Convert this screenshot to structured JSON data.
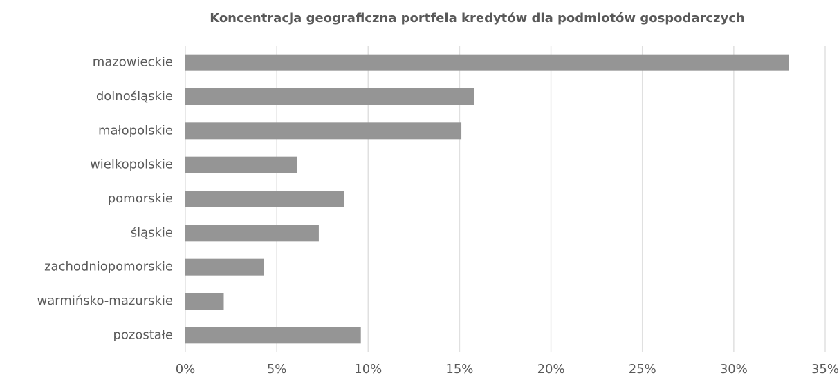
{
  "chart_data": {
    "type": "bar",
    "orientation": "horizontal",
    "title": "Koncentracja geograficzna portfela kredytów dla podmiotów gospodarczych",
    "categories": [
      "mazowieckie",
      "dolnośląskie",
      "małopolskie",
      "wielkopolskie",
      "pomorskie",
      "śląskie",
      "zachodniopomorskie",
      "warmińsko-mazurskie",
      "pozostałe"
    ],
    "values": [
      33,
      15.8,
      15.1,
      6.1,
      8.7,
      7.3,
      4.3,
      2.1,
      9.6
    ],
    "color": "#959595",
    "xlim": [
      0,
      35
    ],
    "xticks": [
      {
        "value": 0,
        "label": "0%"
      },
      {
        "value": 5,
        "label": "5%"
      },
      {
        "value": 10,
        "label": "10%"
      },
      {
        "value": 15,
        "label": "15%"
      },
      {
        "value": 20,
        "label": "20%"
      },
      {
        "value": 25,
        "label": "25%"
      },
      {
        "value": 30,
        "label": "30%"
      },
      {
        "value": 35,
        "label": "35%"
      }
    ],
    "grid": true
  }
}
